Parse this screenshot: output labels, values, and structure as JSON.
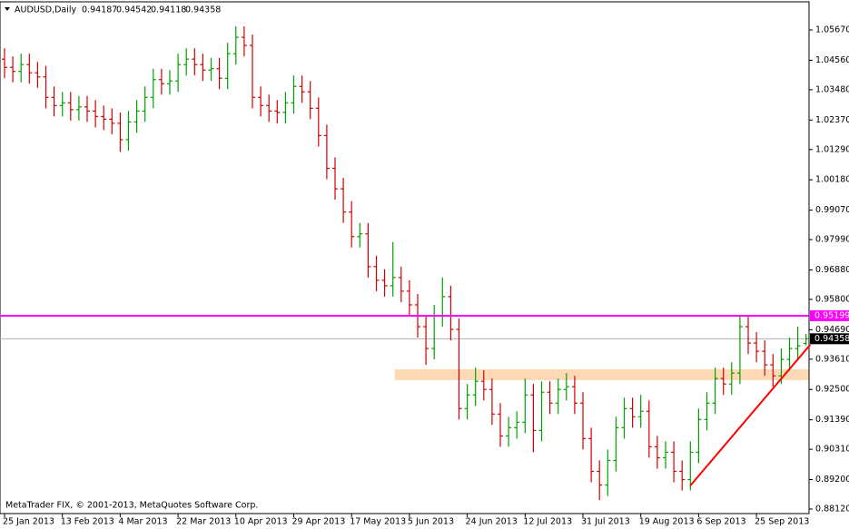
{
  "chart_data": {
    "type": "ohlc",
    "symbol": "AUDUSD,Daily",
    "copyright": "MetaTrader FIX, © 2001-2013, MetaQuotes Software Corp.",
    "up_color": "#00a000",
    "down_color": "#d00000",
    "categories": [
      "25 Jan 2013",
      null,
      null,
      null,
      null,
      null,
      null,
      "13 Feb 2013",
      null,
      null,
      null,
      null,
      null,
      null,
      "4 Mar 2013",
      null,
      null,
      null,
      null,
      null,
      null,
      "22 Mar 2013",
      null,
      null,
      null,
      null,
      null,
      null,
      "10 Apr 2013",
      null,
      null,
      null,
      null,
      null,
      null,
      "29 Apr 2013",
      null,
      null,
      null,
      null,
      null,
      null,
      "17 May 2013",
      null,
      null,
      null,
      null,
      null,
      null,
      "5 Jun 2013",
      null,
      null,
      null,
      null,
      null,
      null,
      "24 Jun 2013",
      null,
      null,
      null,
      null,
      null,
      null,
      "12 Jul 2013",
      null,
      null,
      null,
      null,
      null,
      null,
      "31 Jul 2013",
      null,
      null,
      null,
      null,
      null,
      null,
      "19 Aug 2013",
      null,
      null,
      null,
      null,
      null,
      null,
      "6 Sep 2013",
      null,
      null,
      null,
      null,
      null,
      null,
      "25 Sep 2013",
      null,
      null,
      null,
      null,
      null,
      null
    ],
    "open": [
      1.046,
      1.043,
      1.0415,
      1.044,
      1.041,
      1.0395,
      1.032,
      1.029,
      1.03,
      1.0275,
      1.0285,
      1.027,
      1.025,
      1.024,
      1.0225,
      1.0165,
      1.023,
      1.027,
      1.032,
      1.0385,
      1.037,
      1.038,
      1.044,
      1.046,
      1.044,
      1.042,
      1.0425,
      1.039,
      1.048,
      1.054,
      1.051,
      1.032,
      1.029,
      1.027,
      1.0265,
      1.03,
      1.036,
      1.034,
      1.028,
      1.018,
      1.006,
      0.9985,
      0.99,
      0.981,
      0.982,
      0.97,
      0.965,
      0.963,
      0.966,
      0.961,
      0.956,
      0.948,
      0.94,
      0.952,
      0.959,
      0.947,
      0.918,
      0.923,
      0.928,
      0.925,
      0.916,
      0.908,
      0.911,
      0.913,
      0.923,
      0.91,
      0.924,
      0.92,
      0.925,
      0.926,
      0.92,
      0.907,
      0.895,
      0.89,
      0.899,
      0.911,
      0.918,
      0.915,
      0.917,
      0.904,
      0.9,
      0.902,
      0.895,
      0.892,
      0.902,
      0.914,
      0.92,
      0.929,
      0.927,
      0.931,
      0.948,
      0.942,
      0.939,
      0.934,
      0.93,
      0.936,
      0.94,
      0.94187
    ],
    "high": [
      1.05,
      1.047,
      1.048,
      1.048,
      1.045,
      1.0435,
      1.036,
      1.034,
      1.034,
      1.0325,
      1.0325,
      1.031,
      1.029,
      1.028,
      1.0265,
      1.027,
      1.031,
      1.036,
      1.0425,
      1.0425,
      1.042,
      1.048,
      1.05,
      1.05,
      1.048,
      1.0465,
      1.0465,
      1.052,
      1.058,
      1.058,
      1.055,
      1.036,
      1.033,
      1.031,
      1.034,
      1.04,
      1.04,
      1.038,
      1.032,
      1.022,
      1.01,
      1.0025,
      0.994,
      0.986,
      0.986,
      0.974,
      0.969,
      0.979,
      0.97,
      0.965,
      0.96,
      0.952,
      0.956,
      0.966,
      0.963,
      0.951,
      0.927,
      0.933,
      0.932,
      0.929,
      0.92,
      0.915,
      0.917,
      0.929,
      0.927,
      0.928,
      0.928,
      0.929,
      0.931,
      0.93,
      0.924,
      0.911,
      0.899,
      0.903,
      0.915,
      0.922,
      0.922,
      0.923,
      0.921,
      0.908,
      0.906,
      0.906,
      0.899,
      0.906,
      0.918,
      0.924,
      0.933,
      0.933,
      0.935,
      0.952,
      0.952,
      0.946,
      0.943,
      0.938,
      0.94,
      0.944,
      0.948,
      0.94542
    ],
    "low": [
      1.039,
      1.0375,
      1.0375,
      1.037,
      1.0355,
      1.028,
      1.025,
      1.025,
      1.0235,
      1.0235,
      1.023,
      1.021,
      1.02,
      1.0185,
      1.012,
      1.0125,
      1.019,
      1.023,
      1.028,
      1.033,
      1.033,
      1.034,
      1.04,
      1.04,
      1.038,
      1.038,
      1.035,
      1.035,
      1.044,
      1.047,
      1.028,
      1.025,
      1.023,
      1.0225,
      1.0225,
      1.026,
      1.03,
      1.024,
      1.014,
      1.002,
      0.9945,
      0.986,
      0.977,
      0.977,
      0.966,
      0.961,
      0.959,
      0.959,
      0.957,
      0.952,
      0.944,
      0.934,
      0.936,
      0.948,
      0.943,
      0.914,
      0.914,
      0.919,
      0.921,
      0.912,
      0.904,
      0.904,
      0.907,
      0.909,
      0.902,
      0.906,
      0.916,
      0.916,
      0.921,
      0.916,
      0.903,
      0.891,
      0.8845,
      0.886,
      0.895,
      0.907,
      0.911,
      0.911,
      0.9,
      0.896,
      0.896,
      0.891,
      0.888,
      0.888,
      0.898,
      0.91,
      0.916,
      0.923,
      0.923,
      0.927,
      0.938,
      0.935,
      0.93,
      0.926,
      0.927,
      0.932,
      0.936,
      0.94118
    ],
    "close": [
      1.043,
      1.0415,
      1.044,
      1.041,
      1.0395,
      1.032,
      1.029,
      1.03,
      1.0275,
      1.0285,
      1.027,
      1.025,
      1.024,
      1.0225,
      1.0165,
      1.023,
      1.027,
      1.032,
      1.0385,
      1.037,
      1.038,
      1.044,
      1.046,
      1.044,
      1.042,
      1.0425,
      1.039,
      1.048,
      1.054,
      1.051,
      1.032,
      1.029,
      1.027,
      1.0265,
      1.03,
      1.036,
      1.034,
      1.028,
      1.018,
      1.006,
      0.9985,
      0.99,
      0.981,
      0.982,
      0.97,
      0.965,
      0.963,
      0.966,
      0.961,
      0.956,
      0.948,
      0.94,
      0.952,
      0.959,
      0.947,
      0.918,
      0.923,
      0.928,
      0.925,
      0.916,
      0.908,
      0.911,
      0.913,
      0.923,
      0.91,
      0.924,
      0.92,
      0.925,
      0.926,
      0.92,
      0.907,
      0.895,
      0.89,
      0.899,
      0.911,
      0.918,
      0.915,
      0.917,
      0.904,
      0.9,
      0.902,
      0.895,
      0.892,
      0.902,
      0.914,
      0.92,
      0.929,
      0.927,
      0.931,
      0.948,
      0.942,
      0.939,
      0.934,
      0.93,
      0.936,
      0.94,
      0.941,
      0.94358
    ],
    "ylim": [
      0.87954,
      1.067
    ],
    "yticks": [
      {
        "value": 1.0567,
        "label": "1.05670"
      },
      {
        "value": 1.0456,
        "label": "1.04560"
      },
      {
        "value": 1.0348,
        "label": "1.03480"
      },
      {
        "value": 1.0237,
        "label": "1.02370"
      },
      {
        "value": 1.0129,
        "label": "1.01290"
      },
      {
        "value": 1.0018,
        "label": "1.00180"
      },
      {
        "value": 0.9907,
        "label": "0.99070"
      },
      {
        "value": 0.9799,
        "label": "0.97990"
      },
      {
        "value": 0.9688,
        "label": "0.96880"
      },
      {
        "value": 0.958,
        "label": "0.95800"
      },
      {
        "value": 0.9469,
        "label": "0.94690"
      },
      {
        "value": 0.9361,
        "label": "0.93610"
      },
      {
        "value": 0.925,
        "label": "0.92500"
      },
      {
        "value": 0.9139,
        "label": "0.91390"
      },
      {
        "value": 0.9031,
        "label": "0.90310"
      },
      {
        "value": 0.892,
        "label": "0.89200"
      },
      {
        "value": 0.8812,
        "label": "0.88120"
      }
    ],
    "level": {
      "value": 0.95199,
      "color": "#ff00ff"
    },
    "price_line_color": "#b0b0b0",
    "zone": {
      "range": [
        0.9284,
        0.9324
      ],
      "start": 47,
      "color": "#fdd9b5"
    },
    "trendline": {
      "x": [
        83,
        97.5
      ],
      "y": [
        0.8898,
        0.9414
      ],
      "color": "#ff0000"
    }
  }
}
